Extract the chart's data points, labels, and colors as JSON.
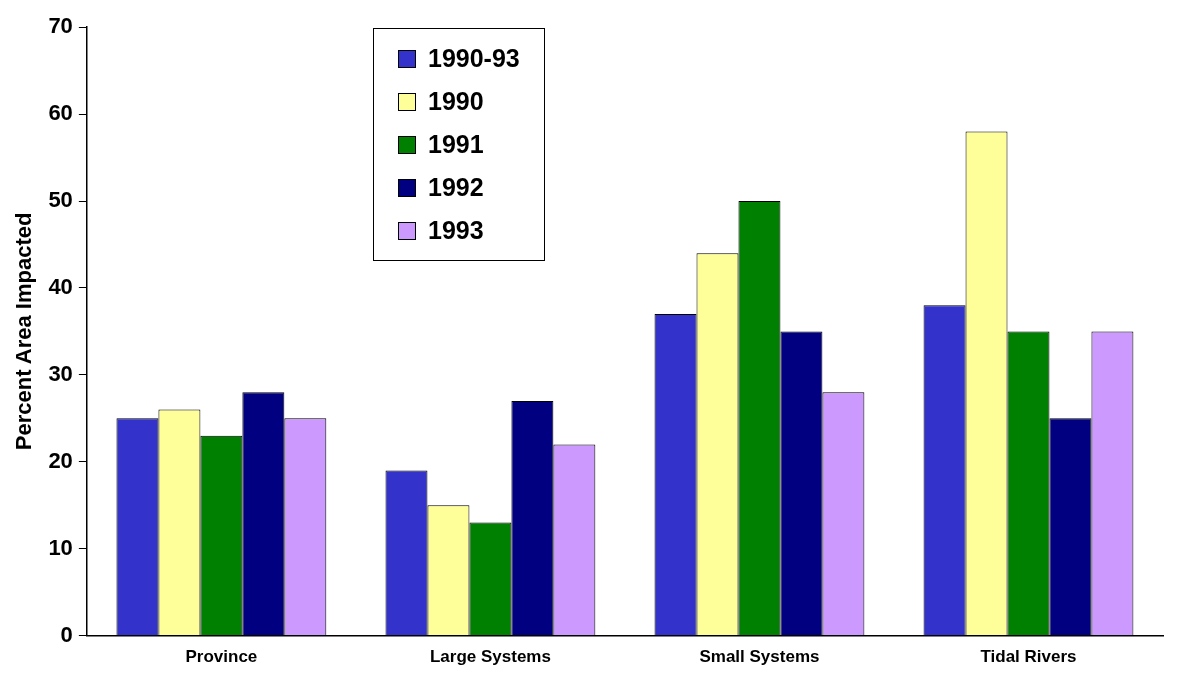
{
  "chart_data": {
    "type": "bar",
    "ylabel": "Percent Area Impacted",
    "categories": [
      "Province",
      "Large Systems",
      "Small Systems",
      "Tidal Rivers"
    ],
    "series": [
      {
        "name": "1990-93",
        "color": "#3333cc",
        "values": [
          25,
          19,
          37,
          38
        ]
      },
      {
        "name": "1990",
        "color": "#ffff99",
        "values": [
          26,
          15,
          44,
          58
        ]
      },
      {
        "name": "1991",
        "color": "#008000",
        "values": [
          23,
          13,
          50,
          35
        ]
      },
      {
        "name": "1992",
        "color": "#000080",
        "values": [
          28,
          27,
          35,
          25
        ]
      },
      {
        "name": "1993",
        "color": "#cc99ff",
        "values": [
          25,
          22,
          28,
          35
        ]
      }
    ],
    "ylim": [
      0,
      70
    ],
    "yticks": [
      0,
      10,
      20,
      30,
      40,
      50,
      60,
      70
    ],
    "grid": false,
    "legend": "top left"
  }
}
